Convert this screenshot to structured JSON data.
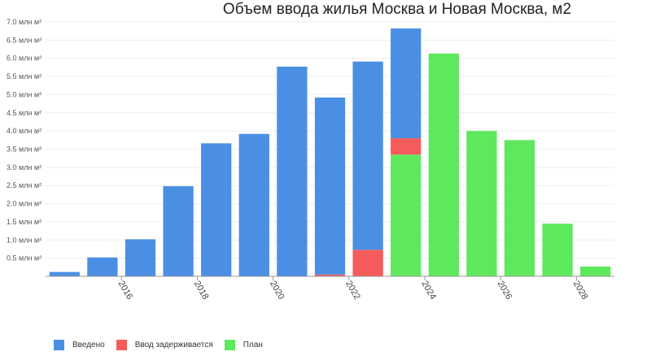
{
  "chart_data": {
    "type": "bar",
    "stacked": true,
    "title": "Объем ввода жилья Москва и Новая Москва, м2",
    "xlabel": "",
    "ylabel": "",
    "years": [
      2015,
      2016,
      2017,
      2018,
      2019,
      2020,
      2021,
      2022,
      2023,
      2024,
      2025,
      2026,
      2027,
      2028,
      2029
    ],
    "x_tick_labels": [
      "2016",
      "2018",
      "2020",
      "2022",
      "2024",
      "2026",
      "2028"
    ],
    "x_tick_years": [
      2016,
      2018,
      2020,
      2022,
      2024,
      2026,
      2028
    ],
    "y_ticks": [
      {
        "value": 0.5,
        "label": "0.5 млн м²"
      },
      {
        "value": 1.0,
        "label": "1.0 млн м²"
      },
      {
        "value": 1.5,
        "label": "1.5 млн м²"
      },
      {
        "value": 2.0,
        "label": "2.0 млн м²"
      },
      {
        "value": 2.5,
        "label": "2.5 млн м²"
      },
      {
        "value": 3.0,
        "label": "3.0 млн м²"
      },
      {
        "value": 3.5,
        "label": "3.5 млн м²"
      },
      {
        "value": 4.0,
        "label": "4.0 млн м²"
      },
      {
        "value": 4.5,
        "label": "4.5 млн м²"
      },
      {
        "value": 5.0,
        "label": "5.0 млн м²"
      },
      {
        "value": 5.5,
        "label": "5.5 млн м²"
      },
      {
        "value": 6.0,
        "label": "6.0 млн м²"
      },
      {
        "value": 6.5,
        "label": "6.5 млн м²"
      },
      {
        "value": 7.0,
        "label": "7.0 млн м²"
      }
    ],
    "ylim": [
      0,
      7.0
    ],
    "grid": true,
    "legend_position": "bottom-left",
    "series": [
      {
        "name": "План",
        "color": "#5ee85e",
        "values": [
          0,
          0,
          0,
          0,
          0,
          0,
          0,
          0,
          0,
          3.35,
          6.13,
          4.0,
          3.75,
          1.45,
          0.27
        ]
      },
      {
        "name": "Ввод задерживается",
        "color": "#f65b5b",
        "values": [
          0,
          0,
          0,
          0,
          0,
          0,
          0,
          0.05,
          0.73,
          0.45,
          0,
          0,
          0,
          0,
          0
        ]
      },
      {
        "name": "Введено",
        "color": "#4a8fe3",
        "values": [
          0.12,
          0.52,
          1.02,
          2.48,
          3.66,
          3.92,
          5.77,
          4.87,
          5.18,
          3.02,
          0,
          0,
          0,
          0,
          0
        ]
      }
    ]
  },
  "legend": [
    {
      "label": "Введено",
      "color": "#4a8fe3"
    },
    {
      "label": "Ввод задерживается",
      "color": "#f65b5b"
    },
    {
      "label": "План",
      "color": "#5ee85e"
    }
  ]
}
